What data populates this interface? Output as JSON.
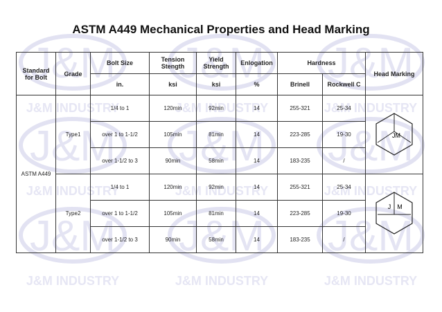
{
  "title": "ASTM A449 Mechanical Properties and Head Marking",
  "watermark": {
    "logo": "J&M",
    "text": "J&M INDUSTRY"
  },
  "table": {
    "header": {
      "standard": "Standard for Bolt",
      "grade": "Grade",
      "bolt_size": "Bolt Size",
      "tension": "Tension Stength",
      "yield": "Yield Strength",
      "elongation": "Enlogation",
      "hardness": "Hardness",
      "head_marking": "Head Marking",
      "bolt_size_unit": "in.",
      "tension_unit": "ksi",
      "yield_unit": "ksi",
      "elongation_unit": "%",
      "brinell": "Brinell",
      "rockwell": "Rockwell C"
    },
    "standard": "ASTM A449",
    "groups": [
      {
        "grade": "Type1",
        "marking": [
          "JM"
        ],
        "rows": [
          [
            "1/4 to 1",
            "120min",
            "92min",
            "14",
            "255-321",
            "25-34"
          ],
          [
            "over 1 to 1-1/2",
            "105min",
            "81min",
            "14",
            "223-285",
            "19-30"
          ],
          [
            "over 1-1/2 to 3",
            "90min",
            "58min",
            "14",
            "183-235",
            "/"
          ]
        ]
      },
      {
        "grade": "Type2",
        "marking": [
          "J",
          "M"
        ],
        "rows": [
          [
            "1/4 to 1",
            "120min",
            "92min",
            "14",
            "255-321",
            "25-34"
          ],
          [
            "over 1 to 1-1/2",
            "105min",
            "81min",
            "14",
            "223-285",
            "19-30"
          ],
          [
            "over 1-1/2 to 3",
            "90min",
            "58min",
            "14",
            "183-235",
            "/"
          ]
        ]
      }
    ]
  }
}
